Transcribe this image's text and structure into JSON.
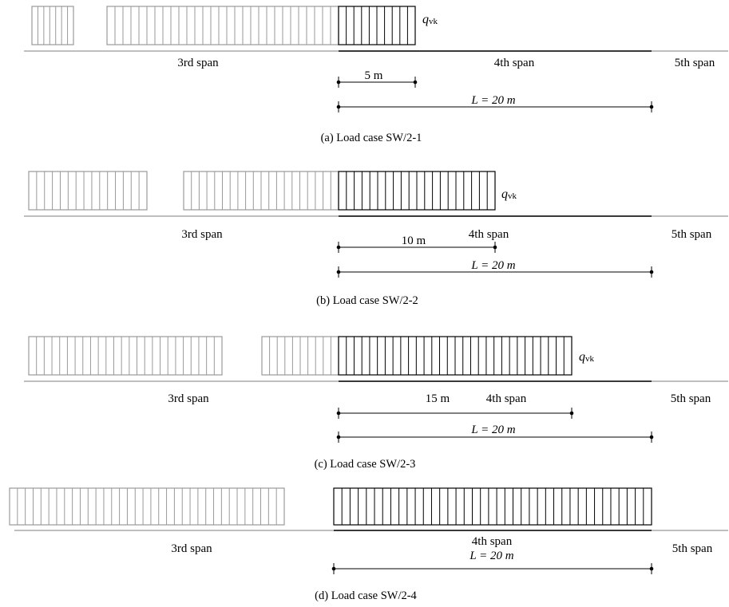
{
  "panels": [
    {
      "caption": "(a)  Load case SW/2-1",
      "span_labels": [
        "3rd span",
        "4th span",
        "5th span"
      ],
      "load_symbol": "q",
      "load_subscript": "vk",
      "loaded_length_label": "5 m",
      "loaded_length_m": 5,
      "span_length_label": "L = 20 m",
      "span_length_m": 20
    },
    {
      "caption": "(b)  Load case SW/2-2",
      "span_labels": [
        "3rd span",
        "4th span",
        "5th span"
      ],
      "load_symbol": "q",
      "load_subscript": "vk",
      "loaded_length_label": "10 m",
      "loaded_length_m": 10,
      "span_length_label": "L = 20 m",
      "span_length_m": 20
    },
    {
      "caption": "(c)  Load case SW/2-3",
      "span_labels": [
        "3rd span",
        "4th span",
        "5th span"
      ],
      "load_symbol": "q",
      "load_subscript": "vk",
      "loaded_length_label": "15 m",
      "loaded_length_m": 15,
      "span_length_label": "L = 20 m",
      "span_length_m": 20
    },
    {
      "caption": "(d)  Load case SW/2-4",
      "span_labels": [
        "3rd span",
        "4th span",
        "5th span"
      ],
      "span_length_label": "L = 20 m",
      "span_length_m": 20
    }
  ]
}
